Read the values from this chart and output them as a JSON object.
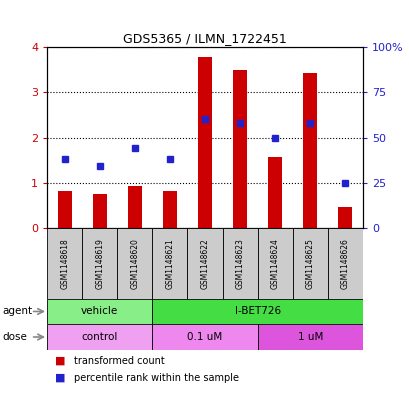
{
  "title": "GDS5365 / ILMN_1722451",
  "samples": [
    "GSM1148618",
    "GSM1148619",
    "GSM1148620",
    "GSM1148621",
    "GSM1148622",
    "GSM1148623",
    "GSM1148624",
    "GSM1148625",
    "GSM1148626"
  ],
  "red_values": [
    0.82,
    0.75,
    0.92,
    0.82,
    3.78,
    3.5,
    1.58,
    3.42,
    0.47
  ],
  "blue_percentiles": [
    38,
    34,
    44,
    38,
    60,
    58,
    50,
    58,
    25
  ],
  "ylim_left": [
    0,
    4
  ],
  "ylim_right": [
    0,
    100
  ],
  "yticks_left": [
    0,
    1,
    2,
    3,
    4
  ],
  "yticks_right": [
    0,
    25,
    50,
    75,
    100
  ],
  "ytick_labels_right": [
    "0",
    "25",
    "50",
    "75",
    "100%"
  ],
  "bar_color": "#CC0000",
  "dot_color": "#2222CC",
  "agent_groups": [
    {
      "label": "vehicle",
      "start": 0,
      "end": 3,
      "color": "#88EE88"
    },
    {
      "label": "I-BET726",
      "start": 3,
      "end": 9,
      "color": "#44DD44"
    }
  ],
  "dose_groups": [
    {
      "label": "control",
      "start": 0,
      "end": 3,
      "color": "#F0A0F0"
    },
    {
      "label": "0.1 uM",
      "start": 3,
      "end": 6,
      "color": "#EE88EE"
    },
    {
      "label": "1 uM",
      "start": 6,
      "end": 9,
      "color": "#DD55DD"
    }
  ],
  "legend_red": "transformed count",
  "legend_blue": "percentile rank within the sample",
  "sample_box_color": "#CCCCCC",
  "plot_bg": "#FFFFFF",
  "fig_bg": "#FFFFFF"
}
